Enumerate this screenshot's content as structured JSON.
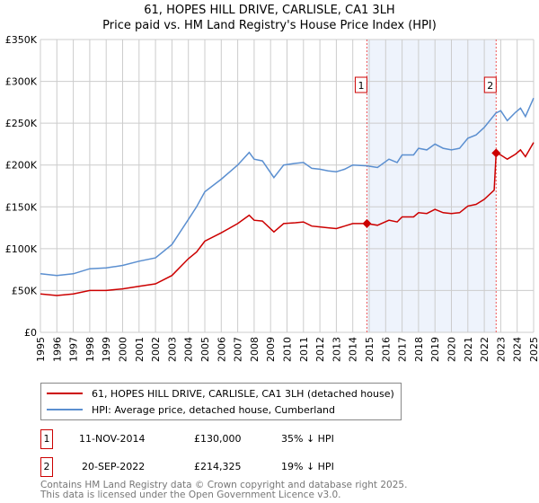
{
  "chart_data": {
    "type": "line",
    "title": "61, HOPES HILL DRIVE, CARLISLE, CA1 3LH",
    "subtitle": "Price paid vs. HM Land Registry's House Price Index (HPI)",
    "xlim": [
      1995,
      2025
    ],
    "ylim": [
      0,
      350000
    ],
    "yticks": [
      0,
      50000,
      100000,
      150000,
      200000,
      250000,
      300000,
      350000
    ],
    "ytick_labels": [
      "£0",
      "£50K",
      "£100K",
      "£150K",
      "£200K",
      "£250K",
      "£300K",
      "£350K"
    ],
    "xticks": [
      1995,
      1996,
      1997,
      1998,
      1999,
      2000,
      2001,
      2002,
      2003,
      2004,
      2005,
      2006,
      2007,
      2008,
      2009,
      2010,
      2011,
      2012,
      2013,
      2014,
      2015,
      2016,
      2017,
      2018,
      2019,
      2020,
      2021,
      2022,
      2023,
      2024,
      2025
    ],
    "grid": true,
    "series": [
      {
        "name": "61, HOPES HILL DRIVE, CARLISLE, CA1 3LH (detached house)",
        "color": "#cc0000",
        "x": [
          1995,
          1996,
          1997,
          1998,
          1999,
          2000,
          2001,
          2002,
          2003,
          2004,
          2004.5,
          2005,
          2006,
          2007,
          2007.7,
          2008,
          2008.5,
          2009.2,
          2009.8,
          2010.5,
          2011,
          2011.5,
          2012,
          2012.5,
          2013,
          2013.5,
          2014,
          2014.86,
          2015.5,
          2016.2,
          2016.7,
          2017,
          2017.7,
          2018,
          2018.5,
          2019,
          2019.5,
          2020,
          2020.5,
          2021,
          2021.5,
          2022,
          2022.6,
          2022.72,
          2023,
          2023.4,
          2023.9,
          2024.2,
          2024.5,
          2025
        ],
        "y": [
          46000,
          44000,
          46000,
          50000,
          50000,
          52000,
          55000,
          58000,
          68000,
          88000,
          96000,
          109000,
          119000,
          130000,
          140000,
          134000,
          133000,
          120000,
          130000,
          131000,
          132000,
          127000,
          126000,
          125000,
          124000,
          127000,
          130000,
          130000,
          128000,
          134000,
          132000,
          138000,
          138000,
          143000,
          142000,
          147000,
          143000,
          142000,
          143000,
          151000,
          153000,
          159000,
          170000,
          214325,
          212000,
          207000,
          213000,
          218000,
          210000,
          227000
        ]
      },
      {
        "name": "HPI: Average price, detached house, Cumberland",
        "color": "#5b8fd0",
        "x": [
          1995,
          1996,
          1997,
          1998,
          1999,
          2000,
          2001,
          2002,
          2003,
          2004,
          2004.5,
          2005,
          2006,
          2007,
          2007.7,
          2008,
          2008.5,
          2009.2,
          2009.8,
          2010.5,
          2011,
          2011.5,
          2012,
          2012.5,
          2013,
          2013.5,
          2014,
          2014.86,
          2015.5,
          2016.2,
          2016.7,
          2017,
          2017.7,
          2018,
          2018.5,
          2019,
          2019.5,
          2020,
          2020.5,
          2021,
          2021.5,
          2022,
          2022.7,
          2023,
          2023.4,
          2023.9,
          2024.2,
          2024.5,
          2025
        ],
        "y": [
          70000,
          68000,
          70000,
          76000,
          77000,
          80000,
          85000,
          89000,
          105000,
          135000,
          150000,
          168000,
          183000,
          200000,
          215000,
          207000,
          205000,
          185000,
          200000,
          202000,
          203000,
          196000,
          195000,
          193000,
          192000,
          195000,
          200000,
          199000,
          197000,
          207000,
          203000,
          212000,
          212000,
          220000,
          218000,
          225000,
          220000,
          218000,
          220000,
          232000,
          236000,
          245000,
          262000,
          265000,
          253000,
          263000,
          268000,
          258000,
          280000
        ]
      }
    ],
    "sales": [
      {
        "label": "1",
        "x": 2014.86,
        "date": "11-NOV-2014",
        "price": "£130,000",
        "price_value": 130000,
        "hpi": "35% ↓ HPI"
      },
      {
        "label": "2",
        "x": 2022.72,
        "date": "20-SEP-2022",
        "price": "£214,325",
        "price_value": 214325,
        "hpi": "19% ↓ HPI"
      }
    ]
  },
  "legend": {
    "red": "61, HOPES HILL DRIVE, CARLISLE, CA1 3LH (detached house)",
    "blue": "HPI: Average price, detached house, Cumberland"
  },
  "footer": {
    "line1": "Contains HM Land Registry data © Crown copyright and database right 2025.",
    "line2": "This data is licensed under the Open Government Licence v3.0."
  }
}
